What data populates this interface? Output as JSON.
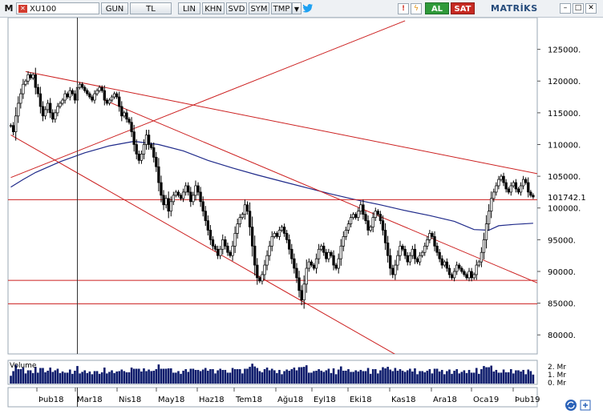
{
  "toolbar": {
    "logo": "M",
    "symbol": "XU100",
    "buttons": [
      "GUN",
      "TL",
      "LIN",
      "KHN",
      "SVD",
      "SYM",
      "TMP"
    ],
    "al": "AL",
    "sat": "SAT",
    "brand": "MATRİKS"
  },
  "colors": {
    "candle": "#000000",
    "trend": "#cc1f1f",
    "ma": "#1f2a8a",
    "volume": "#0b1a6b",
    "background": "#ffffff"
  },
  "chart_data": {
    "type": "candlestick",
    "symbol": "XU100",
    "y_ticks": [
      80000,
      85000,
      90000,
      95000,
      100000,
      105000,
      110000,
      115000,
      120000,
      125000
    ],
    "y_tick_labels": [
      "80000.",
      "85000.",
      "90000.",
      "95000.",
      "100000.",
      "105000.",
      "110000.",
      "115000.",
      "120000.",
      "125000."
    ],
    "ylim": [
      77000,
      130000
    ],
    "x_ticks": [
      "Þub18",
      "Mar18",
      "Nis18",
      "May18",
      "Haz18",
      "Tem18",
      "Ağu18",
      "Eyl18",
      "Eki18",
      "Kas18",
      "Ara18",
      "Oca19",
      "Þub19"
    ],
    "last_price_label": "101742.1",
    "last_price": 101742.1,
    "closes": [
      113000,
      112000,
      114500,
      116500,
      118000,
      119500,
      120000,
      121000,
      120500,
      121000,
      119000,
      118000,
      116000,
      114500,
      115500,
      116500,
      115000,
      114000,
      115000,
      116000,
      116500,
      117000,
      118000,
      117500,
      118500,
      118000,
      117000,
      119000,
      119500,
      119000,
      118500,
      118000,
      117500,
      117000,
      118000,
      118500,
      119000,
      118500,
      117000,
      116500,
      117000,
      117500,
      118000,
      117500,
      116000,
      114500,
      115000,
      114000,
      113500,
      112000,
      110000,
      108500,
      107500,
      108500,
      110000,
      111500,
      110000,
      109500,
      108000,
      106500,
      104000,
      102000,
      100500,
      101500,
      99500,
      101000,
      102000,
      102500,
      102000,
      101500,
      102500,
      103500,
      102500,
      101000,
      102000,
      103500,
      102500,
      101000,
      99500,
      98000,
      96500,
      95000,
      94000,
      93500,
      92500,
      93500,
      95000,
      94000,
      93000,
      92500,
      94000,
      96000,
      97500,
      98500,
      99000,
      100500,
      99500,
      97000,
      94000,
      91000,
      89000,
      88500,
      89500,
      91000,
      92500,
      94000,
      95500,
      96000,
      95500,
      96500,
      97000,
      96000,
      95000,
      93500,
      92000,
      90500,
      89000,
      87000,
      85500,
      88000,
      90500,
      91500,
      91000,
      90500,
      92000,
      93500,
      94000,
      93000,
      92000,
      93000,
      92500,
      91000,
      90500,
      92000,
      94000,
      95500,
      96500,
      97500,
      98500,
      99000,
      98500,
      99500,
      100500,
      99000,
      98000,
      96500,
      97000,
      98500,
      99500,
      99000,
      98000,
      96500,
      94500,
      92500,
      90500,
      89500,
      91000,
      92500,
      94000,
      93500,
      92500,
      91500,
      92500,
      93500,
      92000,
      91500,
      92500,
      93000,
      94000,
      95000,
      96000,
      95500,
      94000,
      93000,
      92000,
      91000,
      91500,
      90500,
      89500,
      89000,
      90000,
      91000,
      90500,
      90000,
      89500,
      89000,
      90000,
      89000,
      89500,
      91000,
      91500,
      93000,
      95000,
      97500,
      99500,
      101500,
      102500,
      103500,
      104500,
      105000,
      104000,
      103000,
      102500,
      103500,
      104000,
      103000,
      102500,
      103500,
      104500,
      104000,
      102500,
      102000,
      101742.1
    ],
    "ma_points": [
      [
        0,
        103300
      ],
      [
        5,
        104500
      ],
      [
        10,
        105600
      ],
      [
        20,
        107300
      ],
      [
        30,
        108700
      ],
      [
        40,
        109800
      ],
      [
        50,
        110500
      ],
      [
        60,
        110000
      ],
      [
        70,
        109000
      ],
      [
        80,
        107500
      ],
      [
        90,
        106300
      ],
      [
        100,
        105200
      ],
      [
        110,
        104200
      ],
      [
        120,
        103200
      ],
      [
        130,
        102200
      ],
      [
        140,
        101300
      ],
      [
        150,
        100500
      ],
      [
        160,
        99600
      ],
      [
        170,
        98800
      ],
      [
        180,
        97900
      ],
      [
        188,
        96600
      ],
      [
        194,
        96500
      ],
      [
        198,
        97200
      ],
      [
        204,
        97400
      ],
      [
        212,
        97600
      ]
    ],
    "trendlines": [
      {
        "from": [
          0,
          104800
        ],
        "to": [
          160,
          129500
        ]
      },
      {
        "from": [
          6,
          121500
        ],
        "to": [
          224,
          104600
        ]
      },
      {
        "from": [
          0,
          111500
        ],
        "to": [
          158,
          76500
        ]
      },
      {
        "from": [
          38,
          117000
        ],
        "to": [
          224,
          86500
        ]
      }
    ],
    "hlines": [
      101300,
      88600,
      84900
    ],
    "cursor_index": 27,
    "volume": {
      "label": "Volume",
      "ticks": [
        "2. Mr",
        "1. Mr",
        "0. Mr"
      ],
      "ymax": 2.5
    }
  }
}
